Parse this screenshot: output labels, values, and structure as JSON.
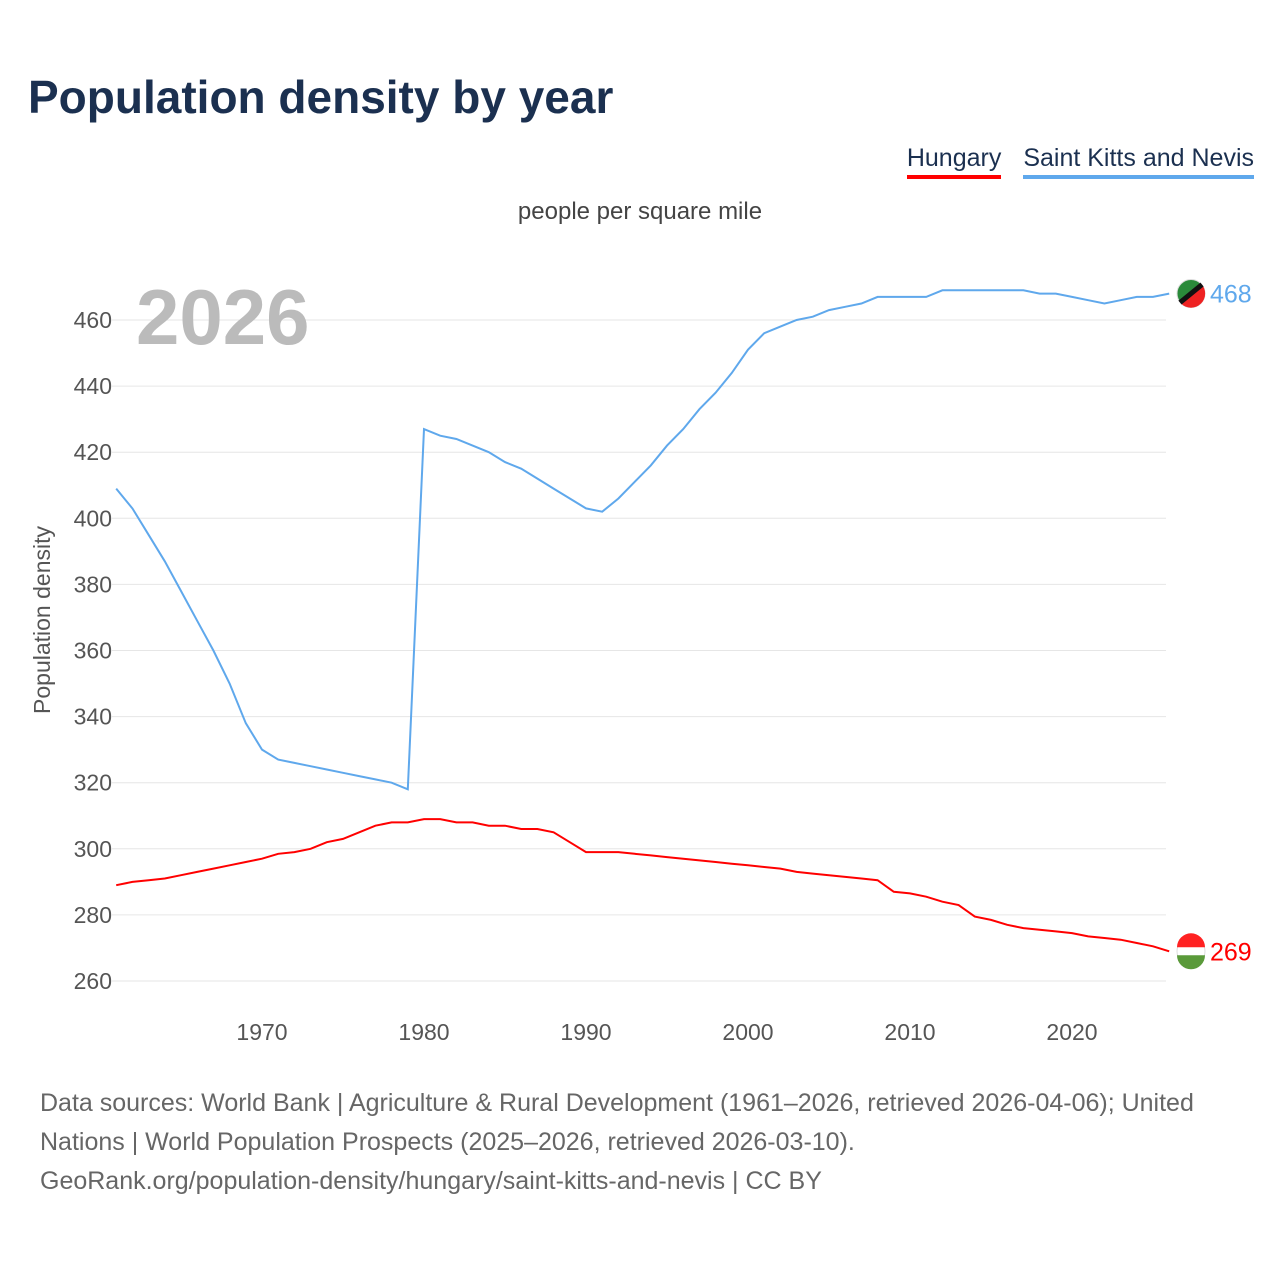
{
  "title": "Population density by year",
  "unit_label": "people per square mile",
  "year_label": "2026",
  "legend": [
    {
      "label": "Hungary",
      "color": "#ff0000"
    },
    {
      "label": "Saint Kitts and Nevis",
      "color": "#5fa8ec"
    }
  ],
  "source": {
    "line1": "Data sources: World Bank | Agriculture & Rural Development (1961–2026, retrieved 2026-04-06); United Nations | World Population Prospects (2025–2026, retrieved 2026-03-10).",
    "line2": "GeoRank.org/population-density/hungary/saint-kitts-and-nevis | CC BY"
  },
  "chart_data": {
    "type": "line",
    "title": "Population density by year",
    "xlabel": "",
    "ylabel": "Population density",
    "xlim": [
      1961,
      2026
    ],
    "ylim": [
      252,
      476
    ],
    "xticks": [
      1970,
      1980,
      1990,
      2000,
      2010,
      2020
    ],
    "yticks": [
      260,
      280,
      300,
      320,
      340,
      360,
      380,
      400,
      420,
      440,
      460
    ],
    "grid": true,
    "legend_position": "top-right",
    "x_start": 1961,
    "series": [
      {
        "name": "Hungary",
        "color": "#ff0000",
        "end_label": "269",
        "values": [
          289,
          290,
          290.5,
          291,
          292,
          293,
          294,
          295,
          296,
          297,
          298.5,
          299,
          300,
          302,
          303,
          305,
          307,
          308,
          308,
          309,
          309,
          308,
          308,
          307,
          307,
          306,
          306,
          305,
          302,
          299,
          299,
          299,
          298.5,
          298,
          297.5,
          297,
          296.5,
          296,
          295.5,
          295,
          294.5,
          294,
          293,
          292.5,
          292,
          291.5,
          291,
          290.5,
          287,
          286.5,
          285.5,
          284,
          283,
          279.5,
          278.5,
          277,
          276,
          275.5,
          275,
          274.5,
          273.5,
          273,
          272.5,
          271.5,
          270.5,
          269
        ]
      },
      {
        "name": "Saint Kitts and Nevis",
        "color": "#5fa8ec",
        "end_label": "468",
        "values": [
          409,
          403,
          395,
          387,
          378,
          369,
          360,
          350,
          338,
          330,
          327,
          326,
          325,
          324,
          323,
          322,
          321,
          320,
          318,
          427,
          425,
          424,
          422,
          420,
          417,
          415,
          412,
          409,
          406,
          403,
          402,
          406,
          411,
          416,
          422,
          427,
          433,
          438,
          444,
          451,
          456,
          458,
          460,
          461,
          463,
          464,
          465,
          467,
          467,
          467,
          467,
          469,
          469,
          469,
          469,
          469,
          469,
          468,
          468,
          467,
          466,
          465,
          466,
          467,
          467,
          468
        ]
      }
    ]
  }
}
